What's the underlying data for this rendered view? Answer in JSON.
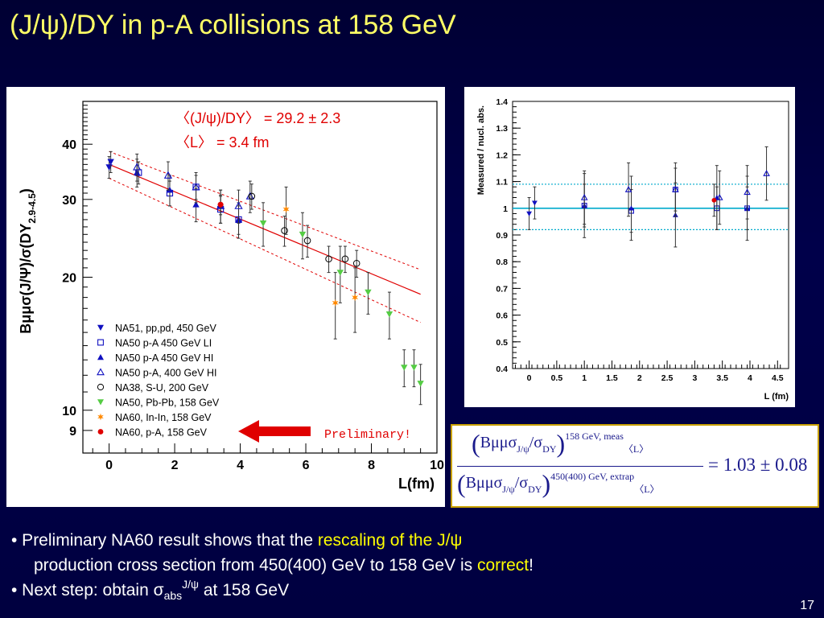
{
  "slide": {
    "title": "(J/ψ)/DY in p-A collisions at 158 GeV",
    "page_number": "17",
    "bullet1_part1": "• Preliminary NA60 result shows that the ",
    "bullet1_hl": "rescaling of the J/ψ",
    "bullet1_line2_part1": "production cross section from 450(400) GeV to 158 GeV is ",
    "bullet1_line2_hl": "correct",
    "bullet1_line2_end": "!",
    "bullet2_part1": "• Next step: obtain ",
    "bullet2_sigma": "σ",
    "bullet2_sub": "abs",
    "bullet2_sup": "J/ψ",
    "bullet2_end": " at 158 GeV"
  },
  "formula": {
    "num_main": "Bμμσ",
    "num_sub1": "J/ψ",
    "num_slash": "/σ",
    "num_sub2": "DY",
    "num_sup": "158 GeV, meas",
    "num_l": "〈L〉",
    "den_main": "Bμμσ",
    "den_sub1": "J/ψ",
    "den_slash": "/σ",
    "den_sub2": "DY",
    "den_sup": "450(400) GeV, extrap",
    "den_l": "〈L〉",
    "result": "= 1.03 ± 0.08"
  },
  "colors": {
    "accent_title": "#ffff66",
    "highlight": "#ffff00",
    "fit_line": "#e00000",
    "na51": "#1010c0",
    "na50": "#1010c0",
    "na38": "#000000",
    "pbpb": "#55cc44",
    "inin": "#ff8800",
    "na60pa": "#e00000",
    "arrow": "#e00000",
    "ratio_line": "#00aacc"
  },
  "chart_data": [
    {
      "type": "scatter",
      "ylabel": "Bμμσ(J/Ψ)/σ(DY2.9-4.5)",
      "ylabel_main": "Bμμσ(J/Ψ)/σ(DY",
      "ylabel_sub": "2.9-4.5",
      "ylabel_close": ")",
      "xlabel": "L(fm)",
      "xlim": [
        -0.8,
        10
      ],
      "ylim": [
        8,
        50
      ],
      "yscale": "log",
      "x_ticks": [
        "0",
        "2",
        "4",
        "6",
        "8",
        "10"
      ],
      "y_ticks": [
        "9",
        "10",
        "20",
        "30",
        "40"
      ],
      "annotation_line1": "〈(J/ψ)/DY〉 = 29.2 ± 2.3",
      "annotation_line2": "〈L〉 = 3.4 fm",
      "preliminary_label": "Preliminary!",
      "fit": {
        "x": [
          0,
          9.5
        ],
        "y": [
          36.0,
          18.3
        ],
        "band_offset": 2.5
      },
      "series": [
        {
          "name": "NA51, pp,pd, 450 GeV",
          "marker": "tri-down-filled",
          "color": "#1010c0",
          "points": [
            [
              0.0,
              35.5,
              2.0
            ],
            [
              0.05,
              36.5,
              2.0
            ]
          ]
        },
        {
          "name": "NA50 p-A 450 GeV LI",
          "marker": "square-open",
          "color": "#1010c0",
          "points": [
            [
              0.9,
              34.5,
              2.0
            ],
            [
              1.85,
              31.0,
              2.0
            ],
            [
              2.65,
              32.0,
              2.0
            ],
            [
              3.4,
              28.5,
              2.0
            ],
            [
              3.95,
              27.0,
              2.0
            ]
          ]
        },
        {
          "name": "NA50 p-A 450 GeV HI",
          "marker": "tri-up-filled",
          "color": "#1010c0",
          "points": [
            [
              0.85,
              34.5,
              2.5
            ],
            [
              1.85,
              31.5,
              2.5
            ],
            [
              2.65,
              29.2,
              2.5
            ],
            [
              3.4,
              29.0,
              2.5
            ],
            [
              3.95,
              27.0,
              2.5
            ]
          ]
        },
        {
          "name": "NA50 p-A, 400 GeV HI",
          "marker": "tri-up-open",
          "color": "#1010c0",
          "points": [
            [
              0.85,
              35.5,
              2.5
            ],
            [
              1.8,
              34.0,
              2.5
            ],
            [
              2.65,
              32.0,
              2.5
            ],
            [
              3.4,
              29.0,
              2.5
            ],
            [
              3.95,
              29.0,
              2.5
            ],
            [
              4.3,
              30.5,
              2.5
            ]
          ]
        },
        {
          "name": "NA38, S-U, 200 GeV",
          "marker": "circle-open",
          "color": "#000000",
          "points": [
            [
              4.35,
              30.5,
              2.0
            ],
            [
              5.35,
              25.5,
              2.0
            ],
            [
              6.05,
              24.2,
              2.0
            ],
            [
              6.7,
              22.0,
              1.5
            ],
            [
              7.2,
              22.0,
              1.5
            ],
            [
              7.55,
              21.5,
              1.5
            ]
          ]
        },
        {
          "name": "NA50, Pb-Pb, 158 GeV",
          "marker": "tri-down-filled",
          "color": "#55cc44",
          "points": [
            [
              4.7,
              26.5,
              3.0
            ],
            [
              5.9,
              25.0,
              3.0
            ],
            [
              7.05,
              20.5,
              3.0
            ],
            [
              7.9,
              18.5,
              2.0
            ],
            [
              8.55,
              16.5,
              2.0
            ],
            [
              9.0,
              12.5,
              1.2
            ],
            [
              9.3,
              12.5,
              1.2
            ],
            [
              9.5,
              11.5,
              1.2
            ]
          ]
        },
        {
          "name": "NA60, In-In, 158 GeV",
          "marker": "star",
          "color": "#ff8800",
          "points": [
            [
              5.4,
              28.5,
              3.5
            ],
            [
              6.9,
              17.5,
              3.0
            ],
            [
              7.5,
              18.0,
              3.0
            ]
          ]
        },
        {
          "name": "NA60, p-A, 158 GeV",
          "marker": "circle-filled",
          "color": "#e00000",
          "points": [
            [
              3.4,
              29.2,
              1.5
            ]
          ]
        }
      ]
    },
    {
      "type": "scatter",
      "ylabel": "Measured / nucl. abs.",
      "xlabel": "L (fm)",
      "xlim": [
        -0.3,
        4.7
      ],
      "ylim": [
        0.4,
        1.4
      ],
      "x_ticks": [
        "0",
        "0.5",
        "1",
        "1.5",
        "2",
        "2.5",
        "3",
        "3.5",
        "4",
        "4.5"
      ],
      "y_ticks": [
        "0.4",
        "0.5",
        "0.6",
        "0.7",
        "0.8",
        "0.9",
        "1",
        "1.1",
        "1.2",
        "1.3",
        "1.4"
      ],
      "reference_line": 1.0,
      "band": [
        0.92,
        1.09
      ],
      "series": [
        {
          "name": "NA51, pp,pd, 450 GeV",
          "marker": "tri-down-filled",
          "color": "#1010c0",
          "points": [
            [
              0.0,
              0.98,
              0.06
            ],
            [
              0.1,
              1.02,
              0.06
            ]
          ]
        },
        {
          "name": "NA50 p-A 450 GeV LI",
          "marker": "square-open",
          "color": "#1010c0",
          "points": [
            [
              1.0,
              1.01,
              0.08
            ],
            [
              1.85,
              0.99,
              0.08
            ],
            [
              2.65,
              1.07,
              0.08
            ],
            [
              3.4,
              1.0,
              0.08
            ],
            [
              3.95,
              1.0,
              0.08
            ]
          ]
        },
        {
          "name": "NA50 p-A 450 GeV HI",
          "marker": "tri-up-filled",
          "color": "#1010c0",
          "points": [
            [
              1.0,
              1.01,
              0.12
            ],
            [
              1.85,
              1.0,
              0.12
            ],
            [
              2.65,
              0.975,
              0.12
            ],
            [
              3.4,
              1.04,
              0.12
            ],
            [
              3.95,
              1.0,
              0.12
            ]
          ]
        },
        {
          "name": "NA50 p-A, 400 GeV HI",
          "marker": "tri-up-open",
          "color": "#1010c0",
          "points": [
            [
              1.0,
              1.04,
              0.1
            ],
            [
              1.8,
              1.07,
              0.1
            ],
            [
              2.65,
              1.07,
              0.1
            ],
            [
              3.45,
              1.04,
              0.1
            ],
            [
              3.95,
              1.06,
              0.1
            ],
            [
              4.3,
              1.13,
              0.1
            ]
          ]
        },
        {
          "name": "NA60, p-A, 158 GeV",
          "marker": "circle-filled",
          "color": "#e00000",
          "points": [
            [
              3.35,
              1.03,
              0.06
            ]
          ]
        }
      ]
    }
  ]
}
